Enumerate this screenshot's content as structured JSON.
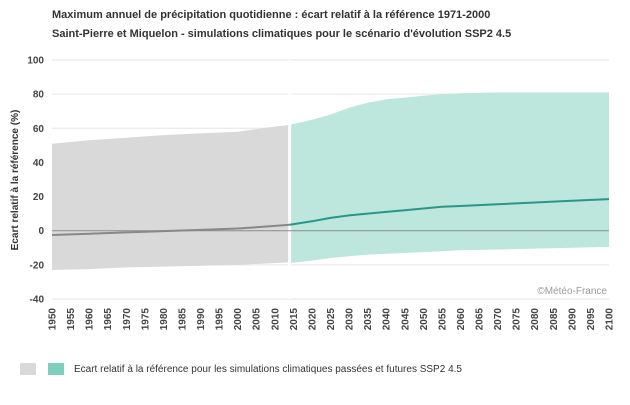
{
  "header": {
    "title": "Maximum annuel de précipitation quotidienne : écart relatif à la référence 1971-2000",
    "subtitle": "Saint-Pierre et Miquelon - simulations climatiques pour le scénario d'évolution SSP2 4.5"
  },
  "credit": "©Météo-France",
  "legend": {
    "label": "Ecart relatif à la référence pour les simulations climatiques passées et futures SSP2 4.5",
    "colors": [
      "#d9d9d9",
      "#7fcfbf"
    ]
  },
  "chart_data": {
    "type": "area",
    "title": "Maximum annuel de précipitation quotidienne : écart relatif à la référence 1971-2000",
    "subtitle": "Saint-Pierre et Miquelon - simulations climatiques pour le scénario d'évolution SSP2 4.5",
    "ylabel": "Ecart relatif à la référence (%)",
    "xlabel": "",
    "xlim": [
      1950,
      2100
    ],
    "ylim": [
      -40,
      100
    ],
    "y_ticks": [
      -40,
      -20,
      0,
      20,
      40,
      60,
      80,
      100
    ],
    "x_ticks": [
      1950,
      1955,
      1960,
      1965,
      1970,
      1975,
      1980,
      1985,
      1990,
      1995,
      2000,
      2005,
      2010,
      2015,
      2020,
      2025,
      2030,
      2035,
      2040,
      2045,
      2050,
      2055,
      2060,
      2065,
      2070,
      2075,
      2080,
      2085,
      2090,
      2095,
      2100
    ],
    "grid": "horizontal",
    "legend_position": "bottom-left",
    "series": [
      {
        "period": "historical",
        "color": "#d9d9d9",
        "line_color": "#888888",
        "x": [
          1950,
          1960,
          1970,
          1980,
          1990,
          2000,
          2005,
          2010,
          2014
        ],
        "upper": [
          51,
          53,
          54.5,
          56,
          57,
          58,
          59.5,
          61,
          62
        ],
        "lower": [
          -23,
          -22.5,
          -21.5,
          -21,
          -20.5,
          -20,
          -19.5,
          -19,
          -18.5
        ],
        "median": [
          -2.5,
          -1.8,
          -1.0,
          -0.2,
          0.5,
          1.3,
          2.0,
          2.8,
          3.5
        ]
      },
      {
        "period": "future",
        "color": "#bde6dd",
        "line_color": "#2a9687",
        "x": [
          2014,
          2020,
          2025,
          2030,
          2035,
          2040,
          2045,
          2050,
          2055,
          2060,
          2070,
          2080,
          2090,
          2100
        ],
        "upper": [
          62,
          65,
          68,
          72,
          75,
          77,
          78,
          79,
          80,
          80.5,
          81,
          81,
          81,
          81
        ],
        "lower": [
          -19,
          -17.5,
          -16,
          -15,
          -14,
          -13.5,
          -13,
          -12.5,
          -12,
          -11.5,
          -11,
          -10.5,
          -10,
          -9.5
        ],
        "median": [
          3.5,
          5.5,
          7.5,
          9.0,
          10.0,
          11.0,
          12.0,
          13.0,
          14.0,
          14.5,
          15.5,
          16.5,
          17.5,
          18.5
        ]
      }
    ]
  }
}
